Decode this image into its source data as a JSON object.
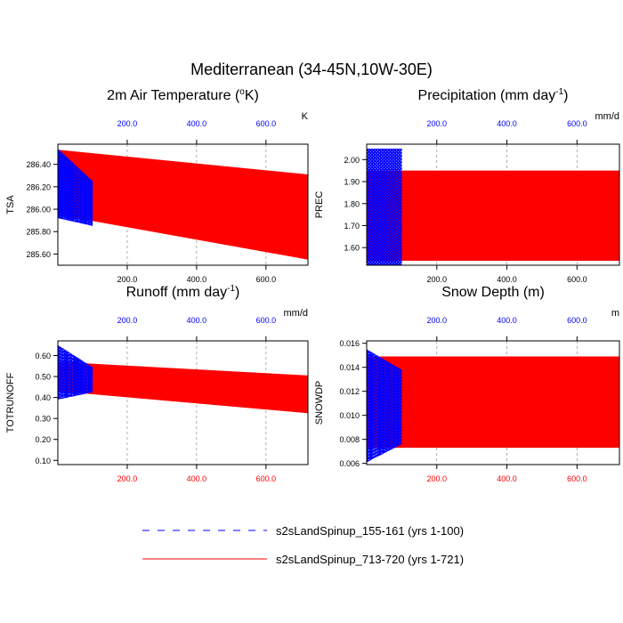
{
  "figure": {
    "title": "Mediterranean (34-45N,10W-30E)",
    "legend": [
      {
        "label": "s2sLandSpinup_155-161 (yrs 1-100)",
        "color": "#0000ff",
        "dash": true
      },
      {
        "label": "s2sLandSpinup_713-720 (yrs 1-721)",
        "color": "#ff0000",
        "dash": false
      }
    ]
  },
  "chart_data": [
    {
      "type": "line",
      "title": "2m Air Temperature (",
      "title_sup": "o",
      "title_end": "K)",
      "ylabel": "TSA",
      "units": "K",
      "xlim": [
        0,
        721
      ],
      "ylim": [
        285.5,
        286.58
      ],
      "yticks": [
        285.6,
        285.8,
        286.0,
        286.2,
        286.4
      ],
      "ytick_labels": [
        "285.60",
        "285.80",
        "286.00",
        "286.20",
        "286.40"
      ],
      "xticks": [
        200,
        400,
        600
      ],
      "xtick_labels": [
        "200.0",
        "400.0",
        "600.0"
      ],
      "top_axis_color": "#0000ff",
      "bottom_axis_color": "#000000",
      "series": [
        {
          "name": "s2sLandSpinup_155-161 (yrs 1-100)",
          "color": "#0000ff",
          "dash": true,
          "years": 100,
          "mean_start": 286.23,
          "mean_end": 286.05,
          "amp_start": 0.31,
          "amp_end": 0.2
        },
        {
          "name": "s2sLandSpinup_713-720 (yrs 1-721)",
          "color": "#ff0000",
          "dash": false,
          "years": 721,
          "mean_start": 286.24,
          "mean_end": 285.93,
          "amp_start": 0.29,
          "amp_end": 0.38
        }
      ]
    },
    {
      "type": "line",
      "title": "Precipitation (mm day",
      "title_sup": "-1",
      "title_end": ")",
      "ylabel": "PREC",
      "units": "mm/d",
      "xlim": [
        0,
        721
      ],
      "ylim": [
        1.52,
        2.07
      ],
      "yticks": [
        1.6,
        1.7,
        1.8,
        1.9,
        2.0
      ],
      "ytick_labels": [
        "1.60",
        "1.70",
        "1.80",
        "1.90",
        "2.00"
      ],
      "xticks": [
        200,
        400,
        600
      ],
      "xtick_labels": [
        "200.0",
        "400.0",
        "600.0"
      ],
      "top_axis_color": "#0000ff",
      "bottom_axis_color": "#000000",
      "series": [
        {
          "name": "s2sLandSpinup_155-161 (yrs 1-100)",
          "color": "#0000ff",
          "dash": true,
          "years": 100,
          "mean_start": 1.785,
          "mean_end": 1.785,
          "amp_start": 0.265,
          "amp_end": 0.265
        },
        {
          "name": "s2sLandSpinup_713-720 (yrs 1-721)",
          "color": "#ff0000",
          "dash": false,
          "years": 721,
          "mean_start": 1.745,
          "mean_end": 1.745,
          "amp_start": 0.205,
          "amp_end": 0.205
        }
      ]
    },
    {
      "type": "line",
      "title": "Runoff (mm day",
      "title_sup": "-1",
      "title_end": ")",
      "ylabel": "TOTRUNOFF",
      "units": "mm/d",
      "xlim": [
        0,
        721
      ],
      "ylim": [
        0.08,
        0.67
      ],
      "yticks": [
        0.1,
        0.2,
        0.3,
        0.4,
        0.5,
        0.6
      ],
      "ytick_labels": [
        "0.10",
        "0.20",
        "0.30",
        "0.40",
        "0.50",
        "0.60"
      ],
      "xticks": [
        200,
        400,
        600
      ],
      "xtick_labels": [
        "200.0",
        "400.0",
        "600.0"
      ],
      "top_axis_color": "#0000ff",
      "bottom_axis_color": "#ff0000",
      "series": [
        {
          "name": "s2sLandSpinup_155-161 (yrs 1-100)",
          "color": "#0000ff",
          "dash": true,
          "years": 100,
          "mean_start": 0.52,
          "mean_end": 0.485,
          "amp_start": 0.13,
          "amp_end": 0.06
        },
        {
          "name": "s2sLandSpinup_713-720 (yrs 1-721)",
          "color": "#ff0000",
          "dash": false,
          "years": 721,
          "mean_start": 0.5,
          "mean_end": 0.415,
          "amp_start": 0.07,
          "amp_end": 0.09
        }
      ]
    },
    {
      "type": "line",
      "title": "Snow Depth (m)",
      "title_sup": "",
      "title_end": "",
      "ylabel": "SNOWDP",
      "units": "m",
      "xlim": [
        0,
        721
      ],
      "ylim": [
        0.0059,
        0.0162
      ],
      "yticks": [
        0.006,
        0.008,
        0.01,
        0.012,
        0.014,
        0.016
      ],
      "ytick_labels": [
        "0.006",
        "0.008",
        "0.010",
        "0.012",
        "0.014",
        "0.016"
      ],
      "xticks": [
        200,
        400,
        600
      ],
      "xtick_labels": [
        "200.0",
        "400.0",
        "600.0"
      ],
      "top_axis_color": "#0000ff",
      "bottom_axis_color": "#ff0000",
      "series": [
        {
          "name": "s2sLandSpinup_155-161 (yrs 1-100)",
          "color": "#0000ff",
          "dash": true,
          "years": 100,
          "mean_start": 0.0108,
          "mean_end": 0.0107,
          "amp_start": 0.0047,
          "amp_end": 0.0031
        },
        {
          "name": "s2sLandSpinup_713-720 (yrs 1-721)",
          "color": "#ff0000",
          "dash": false,
          "years": 721,
          "mean_start": 0.0111,
          "mean_end": 0.0111,
          "amp_start": 0.0038,
          "amp_end": 0.0038
        }
      ]
    }
  ]
}
